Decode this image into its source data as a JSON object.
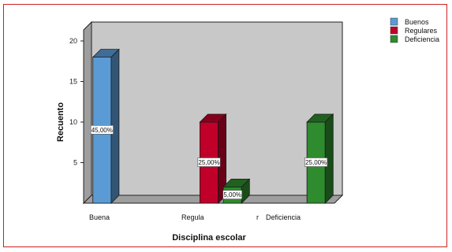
{
  "chart_data": {
    "type": "bar",
    "title": "",
    "xlabel": "Disciplina escolar",
    "ylabel": "Recuento",
    "ylim": [
      0,
      20
    ],
    "yticks": [
      5,
      10,
      15,
      20
    ],
    "grid": false,
    "legend_position": "top-right",
    "categories": [
      "Buena",
      "Regula",
      "Deficiencia"
    ],
    "category_extra": "r",
    "series": [
      {
        "name": "Buenos",
        "color": "#5b9bd5",
        "values": [
          18,
          null,
          null
        ],
        "labels": [
          "45,00%",
          "",
          ""
        ]
      },
      {
        "name": "Regulares",
        "color": "#c00028",
        "values": [
          null,
          10,
          null
        ],
        "labels": [
          "",
          "25,00%",
          ""
        ]
      },
      {
        "name": "Deficiencia",
        "color": "#2e8b2e",
        "values": [
          null,
          2,
          10
        ],
        "labels": [
          "",
          "5,00%",
          "25,00%"
        ]
      }
    ]
  }
}
